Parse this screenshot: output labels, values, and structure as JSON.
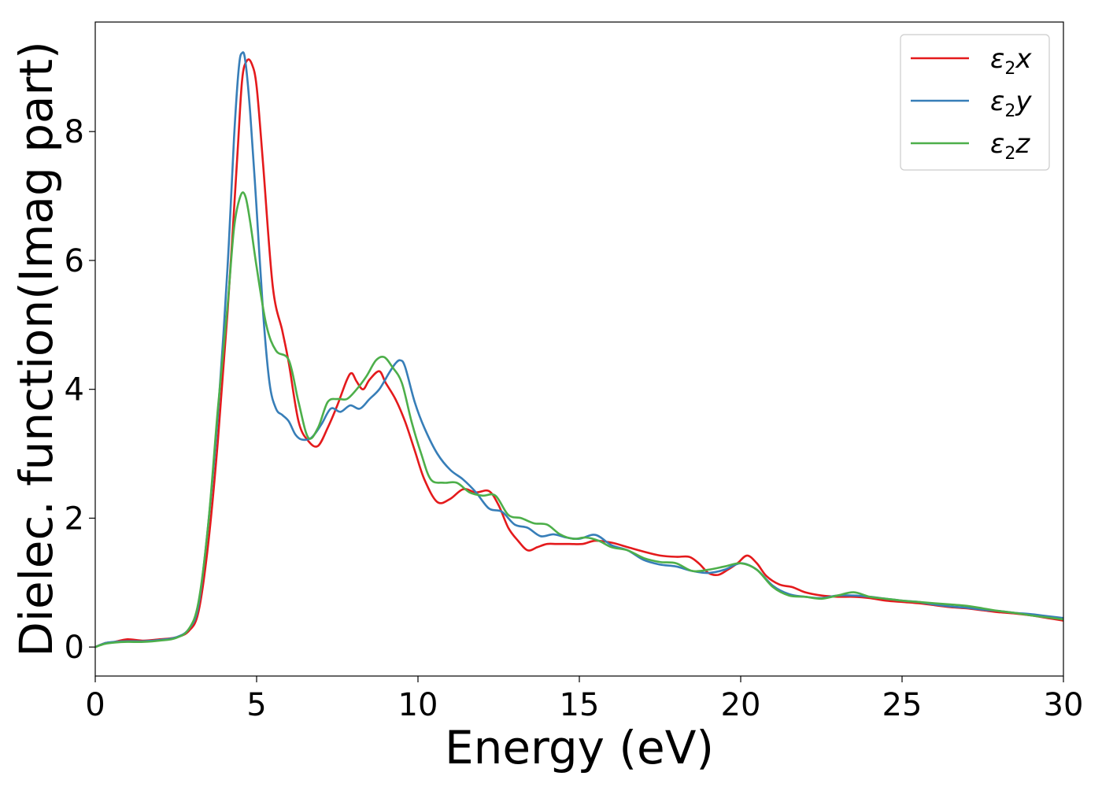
{
  "chart_data": {
    "type": "line",
    "xlabel": "Energy (eV)",
    "ylabel": "Dielec. function(Imag part)",
    "xlim": [
      0,
      30
    ],
    "ylim": [
      -0.45,
      9.7
    ],
    "xticks": [
      0,
      5,
      10,
      15,
      20,
      25,
      30
    ],
    "yticks": [
      0,
      2,
      4,
      6,
      8
    ],
    "grid": false,
    "legend_position": "top-right",
    "series": [
      {
        "name": "ε2x",
        "legend": {
          "symbol": "ε",
          "sub": "2",
          "axis": "x"
        },
        "color": "#e41a1c",
        "x": [
          0,
          0.3,
          0.6,
          1.0,
          1.5,
          2.0,
          2.5,
          2.9,
          3.2,
          3.5,
          3.8,
          4.1,
          4.4,
          4.55,
          4.7,
          4.85,
          5.0,
          5.2,
          5.5,
          5.8,
          6.0,
          6.3,
          6.6,
          6.9,
          7.2,
          7.5,
          7.8,
          7.95,
          8.1,
          8.3,
          8.5,
          8.8,
          9.0,
          9.3,
          9.6,
          9.9,
          10.2,
          10.6,
          11.0,
          11.4,
          11.8,
          12.2,
          12.5,
          12.8,
          13.1,
          13.4,
          13.7,
          14.0,
          14.3,
          14.7,
          15.1,
          15.5,
          16.0,
          16.5,
          17.0,
          17.5,
          18.0,
          18.4,
          18.7,
          19.0,
          19.3,
          19.6,
          19.9,
          20.2,
          20.5,
          20.8,
          21.2,
          21.6,
          22.0,
          22.5,
          23.0,
          23.5,
          24.0,
          24.5,
          25.0,
          25.5,
          26.0,
          26.5,
          27.0,
          27.5,
          28.0,
          28.5,
          29.0,
          29.5,
          30.0
        ],
        "y": [
          0.0,
          0.06,
          0.08,
          0.12,
          0.1,
          0.12,
          0.15,
          0.25,
          0.55,
          1.6,
          3.2,
          5.2,
          7.6,
          8.8,
          9.1,
          9.05,
          8.7,
          7.5,
          5.6,
          4.9,
          4.4,
          3.5,
          3.2,
          3.12,
          3.4,
          3.75,
          4.15,
          4.25,
          4.12,
          4.0,
          4.15,
          4.28,
          4.1,
          3.85,
          3.5,
          3.05,
          2.6,
          2.25,
          2.3,
          2.45,
          2.4,
          2.42,
          2.2,
          1.85,
          1.65,
          1.5,
          1.55,
          1.6,
          1.6,
          1.6,
          1.6,
          1.65,
          1.62,
          1.55,
          1.48,
          1.42,
          1.4,
          1.4,
          1.3,
          1.15,
          1.12,
          1.2,
          1.3,
          1.42,
          1.3,
          1.1,
          0.97,
          0.93,
          0.85,
          0.8,
          0.78,
          0.78,
          0.76,
          0.72,
          0.7,
          0.68,
          0.65,
          0.62,
          0.6,
          0.57,
          0.54,
          0.52,
          0.49,
          0.45,
          0.41
        ]
      },
      {
        "name": "ε2y",
        "legend": {
          "symbol": "ε",
          "sub": "2",
          "axis": "y"
        },
        "color": "#377eb8",
        "x": [
          0,
          0.3,
          0.6,
          1.0,
          1.5,
          2.0,
          2.5,
          2.9,
          3.2,
          3.5,
          3.8,
          4.1,
          4.3,
          4.45,
          4.55,
          4.65,
          4.8,
          5.0,
          5.2,
          5.4,
          5.6,
          5.8,
          6.0,
          6.2,
          6.4,
          6.7,
          7.0,
          7.3,
          7.6,
          7.9,
          8.2,
          8.5,
          8.8,
          9.1,
          9.3,
          9.45,
          9.6,
          9.9,
          10.2,
          10.6,
          11.0,
          11.4,
          11.8,
          12.2,
          12.6,
          13.0,
          13.4,
          13.8,
          14.2,
          14.6,
          15.0,
          15.5,
          16.0,
          16.5,
          17.0,
          17.5,
          18.0,
          18.5,
          19.0,
          19.5,
          20.0,
          20.5,
          21.0,
          21.5,
          22.0,
          22.5,
          23.0,
          23.5,
          24.0,
          24.5,
          25.0,
          25.5,
          26.0,
          26.5,
          27.0,
          27.5,
          28.0,
          28.5,
          29.0,
          29.5,
          30.0
        ],
        "y": [
          0.0,
          0.06,
          0.08,
          0.09,
          0.09,
          0.11,
          0.15,
          0.28,
          0.65,
          1.9,
          3.6,
          5.9,
          7.9,
          9.0,
          9.22,
          9.1,
          8.3,
          6.8,
          5.2,
          4.1,
          3.7,
          3.6,
          3.5,
          3.3,
          3.22,
          3.25,
          3.45,
          3.7,
          3.65,
          3.75,
          3.7,
          3.85,
          4.0,
          4.25,
          4.4,
          4.45,
          4.35,
          3.8,
          3.4,
          3.0,
          2.75,
          2.6,
          2.4,
          2.15,
          2.1,
          1.9,
          1.85,
          1.72,
          1.75,
          1.7,
          1.68,
          1.74,
          1.58,
          1.5,
          1.35,
          1.28,
          1.25,
          1.18,
          1.15,
          1.2,
          1.3,
          1.2,
          0.95,
          0.82,
          0.78,
          0.76,
          0.8,
          0.8,
          0.78,
          0.75,
          0.72,
          0.7,
          0.66,
          0.63,
          0.61,
          0.58,
          0.56,
          0.53,
          0.51,
          0.48,
          0.45
        ]
      },
      {
        "name": "ε2z",
        "legend": {
          "symbol": "ε",
          "sub": "2",
          "axis": "z"
        },
        "color": "#4daf4a",
        "x": [
          0,
          0.3,
          0.6,
          1.0,
          1.5,
          2.0,
          2.5,
          2.9,
          3.2,
          3.5,
          3.8,
          4.1,
          4.3,
          4.5,
          4.65,
          4.8,
          5.0,
          5.3,
          5.6,
          6.0,
          6.3,
          6.6,
          6.9,
          7.2,
          7.5,
          7.8,
          8.1,
          8.4,
          8.7,
          8.95,
          9.2,
          9.5,
          9.8,
          10.1,
          10.4,
          10.8,
          11.2,
          11.6,
          12.0,
          12.4,
          12.8,
          13.2,
          13.6,
          14.0,
          14.4,
          14.8,
          15.2,
          15.6,
          16.0,
          16.5,
          17.0,
          17.5,
          18.0,
          18.5,
          19.0,
          19.5,
          20.0,
          20.5,
          21.0,
          21.5,
          22.0,
          22.5,
          23.0,
          23.5,
          24.0,
          24.5,
          25.0,
          25.5,
          26.0,
          26.5,
          27.0,
          27.5,
          28.0,
          28.5,
          29.0,
          29.5,
          30.0
        ],
        "y": [
          0.0,
          0.05,
          0.07,
          0.08,
          0.08,
          0.1,
          0.14,
          0.28,
          0.7,
          1.9,
          3.7,
          5.3,
          6.5,
          7.0,
          7.0,
          6.6,
          5.9,
          5.0,
          4.6,
          4.45,
          3.8,
          3.25,
          3.4,
          3.8,
          3.85,
          3.85,
          4.0,
          4.2,
          4.45,
          4.5,
          4.35,
          4.1,
          3.5,
          3.0,
          2.6,
          2.55,
          2.55,
          2.4,
          2.35,
          2.35,
          2.05,
          2.0,
          1.92,
          1.9,
          1.75,
          1.68,
          1.7,
          1.65,
          1.55,
          1.5,
          1.38,
          1.32,
          1.3,
          1.18,
          1.2,
          1.25,
          1.3,
          1.2,
          0.93,
          0.8,
          0.78,
          0.75,
          0.8,
          0.85,
          0.78,
          0.75,
          0.72,
          0.7,
          0.68,
          0.66,
          0.64,
          0.6,
          0.56,
          0.53,
          0.49,
          0.46,
          0.43
        ]
      }
    ]
  }
}
